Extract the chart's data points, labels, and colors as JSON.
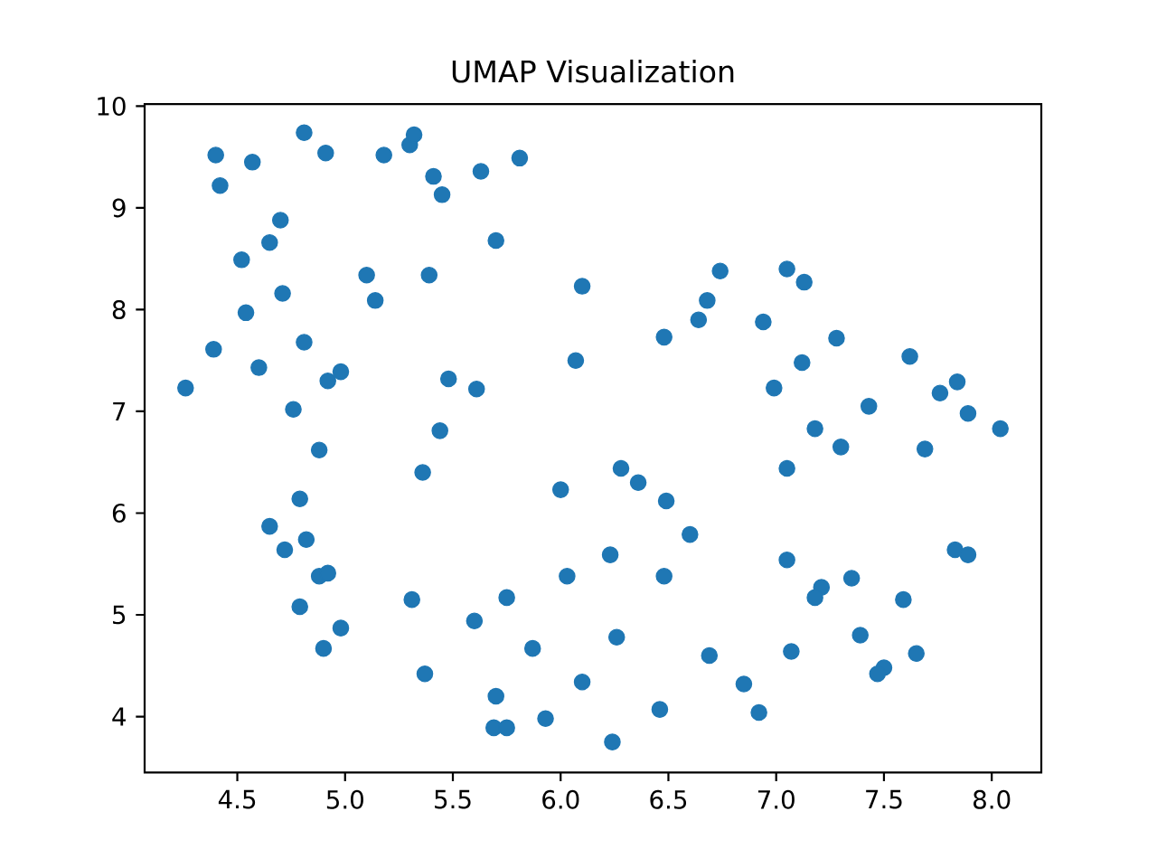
{
  "chart_data": {
    "type": "scatter",
    "title": "UMAP Visualization",
    "color": "#1f77b4",
    "marker": "circle",
    "x": [
      4.26,
      4.4,
      4.42,
      4.57,
      4.81,
      4.91,
      5.18,
      5.3,
      5.32,
      5.41,
      5.45,
      5.63,
      5.81,
      4.7,
      4.65,
      4.52,
      5.7,
      5.1,
      5.39,
      5.14,
      4.71,
      4.54,
      6.1,
      4.39,
      4.6,
      4.81,
      4.92,
      4.98,
      5.48,
      5.61,
      6.07,
      4.76,
      6.74,
      7.05,
      7.13,
      6.68,
      6.64,
      6.94,
      6.48,
      7.28,
      7.12,
      7.62,
      6.99,
      7.43,
      7.76,
      7.84,
      7.89,
      5.44,
      4.88,
      5.36,
      6.0,
      4.79,
      4.65,
      4.82,
      4.72,
      4.88,
      4.92,
      6.03,
      5.31,
      5.75,
      4.79,
      5.6,
      4.98,
      4.9,
      5.87,
      5.37,
      6.1,
      5.7,
      5.93,
      5.69,
      5.75,
      8.04,
      7.18,
      7.3,
      7.69,
      7.05,
      6.28,
      6.36,
      6.49,
      6.6,
      6.23,
      6.48,
      7.05,
      7.83,
      7.89,
      7.35,
      7.21,
      7.18,
      7.59,
      6.26,
      7.39,
      6.69,
      7.07,
      7.65,
      7.5,
      7.47,
      6.85,
      6.46,
      6.92,
      6.24
    ],
    "values": [
      7.23,
      9.52,
      9.22,
      9.45,
      9.74,
      9.54,
      9.52,
      9.62,
      9.72,
      9.31,
      9.13,
      9.36,
      9.49,
      8.88,
      8.66,
      8.49,
      8.68,
      8.34,
      8.34,
      8.09,
      8.16,
      7.97,
      8.23,
      7.61,
      7.43,
      7.68,
      7.3,
      7.39,
      7.32,
      7.22,
      7.5,
      7.02,
      8.38,
      8.4,
      8.27,
      8.09,
      7.9,
      7.88,
      7.73,
      7.72,
      7.48,
      7.54,
      7.23,
      7.05,
      7.18,
      7.29,
      6.98,
      6.81,
      6.62,
      6.4,
      6.23,
      6.14,
      5.87,
      5.74,
      5.64,
      5.38,
      5.41,
      5.38,
      5.15,
      5.17,
      5.08,
      4.94,
      4.87,
      4.67,
      4.67,
      4.42,
      4.34,
      4.2,
      3.98,
      3.89,
      3.89,
      6.83,
      6.83,
      6.65,
      6.63,
      6.44,
      6.44,
      6.3,
      6.12,
      5.79,
      5.59,
      5.38,
      5.54,
      5.64,
      5.59,
      5.36,
      5.27,
      5.17,
      5.15,
      4.78,
      4.8,
      4.6,
      4.64,
      4.62,
      4.48,
      4.42,
      4.32,
      4.07,
      4.04,
      3.75
    ],
    "xlim": [
      4.07,
      8.23
    ],
    "ylim": [
      3.45,
      10.02
    ],
    "xticks": [
      4.5,
      {
        "value": 5,
        "label": "5.0"
      },
      5.5,
      {
        "value": 6,
        "label": "6.0"
      },
      6.5,
      {
        "value": 7,
        "label": "7.0"
      },
      7.5,
      {
        "value": 8,
        "label": "8.0"
      }
    ],
    "yticks": [
      4,
      5,
      6,
      7,
      8,
      9,
      10
    ]
  }
}
